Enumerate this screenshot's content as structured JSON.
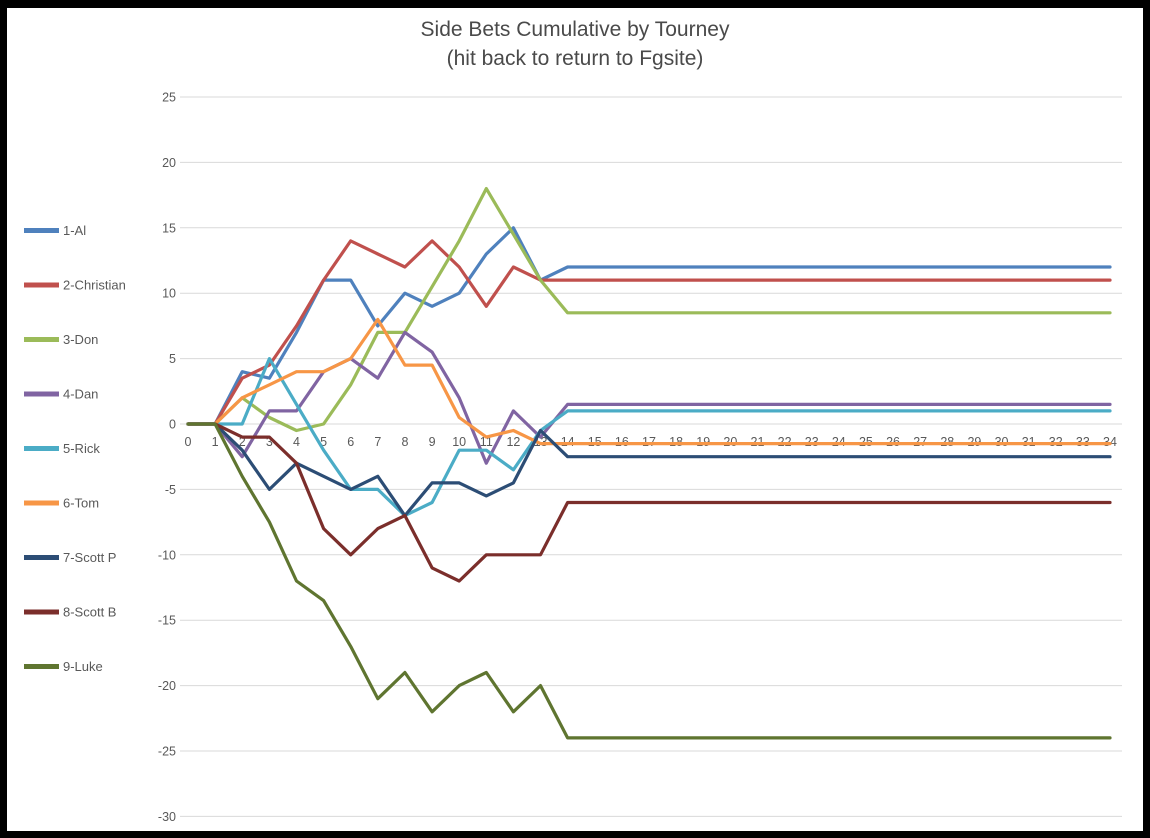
{
  "title": {
    "line1": "Side Bets Cumulative by Tourney",
    "line2": "(hit back to return to Fgsite)"
  },
  "chart_data": {
    "type": "line",
    "xlabel": "",
    "ylabel": "",
    "x_ticks_from": 0,
    "x_ticks_to": 34,
    "ylim": [
      -30,
      25
    ],
    "ytick_step": 5,
    "grid": "horizontal-only",
    "legend_position": "left",
    "note": "Cumulative side-bet totals by tourney number; all series are flat from tourney 14 through 34",
    "series": [
      {
        "name": "1-Al",
        "color": "#4F81BD",
        "values": [
          0,
          0,
          4,
          3.5,
          7,
          11,
          11,
          7.5,
          10,
          9,
          10,
          13,
          15,
          11,
          12
        ],
        "flat_from": 14
      },
      {
        "name": "2-Christian",
        "color": "#C0504D",
        "values": [
          0,
          0,
          3.5,
          4.5,
          7.5,
          11,
          14,
          13,
          12,
          14,
          12,
          9,
          12,
          11,
          11
        ],
        "flat_from": 14
      },
      {
        "name": "3-Don",
        "color": "#9BBB59",
        "values": [
          0,
          0,
          2,
          0.5,
          -0.5,
          0,
          3,
          7,
          7,
          10.5,
          14,
          18,
          14.5,
          11,
          8.5
        ],
        "flat_from": 14
      },
      {
        "name": "4-Dan",
        "color": "#8064A2",
        "values": [
          0,
          0,
          -2.5,
          1,
          1,
          4,
          5,
          3.5,
          7,
          5.5,
          2,
          -3,
          1,
          -1,
          1.5
        ],
        "flat_from": 14
      },
      {
        "name": "5-Rick",
        "color": "#4BACC6",
        "values": [
          0,
          0,
          0,
          5,
          1.5,
          -2,
          -5,
          -5,
          -7,
          -6,
          -2,
          -2,
          -3.5,
          -0.5,
          1
        ],
        "flat_from": 14
      },
      {
        "name": "6-Tom",
        "color": "#F79646",
        "values": [
          0,
          0,
          2,
          3,
          4,
          4,
          5,
          8,
          4.5,
          4.5,
          0.5,
          -1,
          -0.5,
          -1.5,
          -1.5
        ],
        "flat_from": 14
      },
      {
        "name": "7-Scott P",
        "color": "#2C4D75",
        "values": [
          0,
          0,
          -2,
          -5,
          -3,
          -4,
          -5,
          -4,
          -7,
          -4.5,
          -4.5,
          -5.5,
          -4.5,
          -0.5,
          -2.5
        ],
        "flat_from": 14
      },
      {
        "name": "8-Scott B",
        "color": "#7B2E2B",
        "values": [
          0,
          0,
          -1,
          -1,
          -3,
          -8,
          -10,
          -8,
          -7,
          -11,
          -12,
          -10,
          -10,
          -10,
          -6
        ],
        "flat_from": 14
      },
      {
        "name": "9-Luke",
        "color": "#5F7530",
        "values": [
          0,
          0,
          -4,
          -7.5,
          -12,
          -13.5,
          -17,
          -21,
          -19,
          -22,
          -20,
          -19,
          -22,
          -20,
          -24
        ],
        "flat_from": 14
      }
    ]
  },
  "colors": {
    "background": "#FFFFFF",
    "frame": "#000000",
    "gridline": "#D9D9D9",
    "axis_text": "#595959",
    "legend_text": "#595959",
    "title_text": "#4A4A4A"
  }
}
